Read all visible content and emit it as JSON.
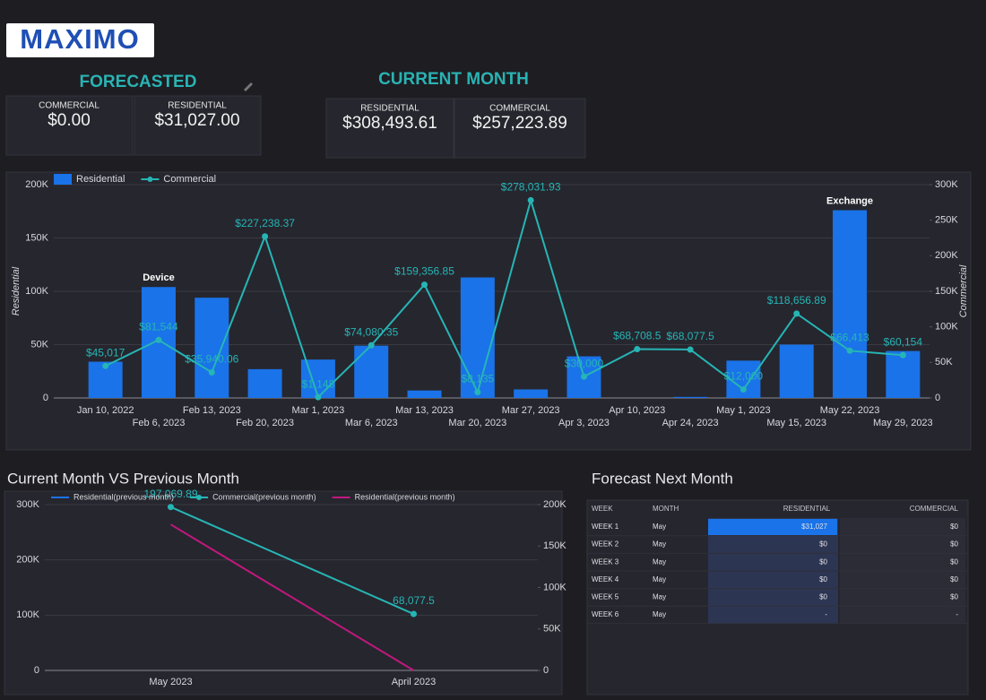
{
  "header": {
    "logo": "MAXIMO"
  },
  "kpis": {
    "forecasted": {
      "title": "FORECASTED",
      "cards": [
        {
          "label": "COMMERCIAL",
          "value": "$0.00"
        },
        {
          "label": "RESIDENTIAL",
          "value": "$31,027.00"
        }
      ]
    },
    "current_month": {
      "title": "CURRENT MONTH",
      "cards": [
        {
          "label": "RESIDENTIAL",
          "value": "$308,493.61"
        },
        {
          "label": "COMMERCIAL",
          "value": "$257,223.89"
        }
      ]
    }
  },
  "chart_data": [
    {
      "type": "combo",
      "categories": [
        "Jan 10, 2022",
        "Feb 6, 2023",
        "Feb 13, 2023",
        "Feb 20, 2023",
        "Mar 1, 2023",
        "Mar 6, 2023",
        "Mar 13, 2023",
        "Mar 20, 2023",
        "Mar 27, 2023",
        "Apr 3, 2023",
        "Apr 10, 2023",
        "Apr 24, 2023",
        "May 1, 2023",
        "May 15, 2023",
        "May 22, 2023",
        "May 29, 2023"
      ],
      "series": [
        {
          "name": "Residential",
          "type": "bar",
          "color": "#1a73e8",
          "values": [
            34000,
            104000,
            94000,
            27000,
            36000,
            49000,
            7000,
            113000,
            8000,
            39000,
            0,
            1000,
            35000,
            50000,
            176000,
            44000
          ]
        },
        {
          "name": "Commercial",
          "type": "line",
          "color": "#26b5b5",
          "axis": "y2",
          "values": [
            45017,
            81544,
            35940.06,
            227238.37,
            1148,
            74080.35,
            159356.85,
            8135,
            278031.93,
            30000,
            68708.5,
            68077.5,
            12000,
            118656.89,
            66413,
            60154
          ],
          "value_labels": [
            "$45,017",
            "$81,544",
            "$35,940.06",
            "$227,238.37",
            "$1,148",
            "$74,080.35",
            "$159,356.85",
            "$8,135",
            "$278,031.93",
            "$30,000",
            "$68,708.5",
            "$68,077.5",
            "$12,000",
            "$118,656.89",
            "$66,413",
            "$60,154"
          ]
        }
      ],
      "ylabel": "Residential",
      "y2label": "Commercial",
      "ylim": [
        0,
        200000
      ],
      "yticks": [
        0,
        {
          "value": 50000,
          "label": "50K"
        },
        {
          "value": 100000,
          "label": "100K"
        },
        {
          "value": 150000,
          "label": "150K"
        },
        {
          "value": 200000,
          "label": "200K"
        }
      ],
      "y2lim": [
        0,
        300000
      ],
      "y2ticks": [
        0,
        {
          "value": 50000,
          "label": "50K"
        },
        {
          "value": 100000,
          "label": "100K"
        },
        {
          "value": 150000,
          "label": "150K"
        },
        {
          "value": 200000,
          "label": "200K"
        },
        {
          "value": 250000,
          "label": "250K"
        },
        {
          "value": 300000,
          "label": "300K"
        }
      ],
      "annotations": [
        {
          "text": "Device",
          "x": "Feb 6, 2023"
        },
        {
          "text": "Exchange",
          "x": "May 22, 2023"
        }
      ],
      "grid": true,
      "legend": "top-left"
    },
    {
      "type": "line",
      "title": "Current Month VS Previous Month",
      "categories": [
        "May 2023",
        "April 2023"
      ],
      "series": [
        {
          "name": "Residential(previous month)",
          "type": "line",
          "color": "#1a73e8",
          "values": [
            null,
            null
          ]
        },
        {
          "name": "Commercial(previous month)",
          "type": "line",
          "color": "#26b5b5",
          "axis": "y2",
          "values": [
            197069.89,
            68077.5
          ],
          "value_labels": [
            "197,069.89",
            "68,077.5"
          ]
        },
        {
          "name": "Residential(previous month)",
          "type": "line",
          "color": "#c2187e",
          "values": [
            264000,
            0
          ],
          "markers": false
        }
      ],
      "ylim": [
        0,
        300000
      ],
      "yticks": [
        0,
        {
          "value": 100000,
          "label": "100K"
        },
        {
          "value": 200000,
          "label": "200K"
        },
        {
          "value": 300000,
          "label": "300K"
        }
      ],
      "y2lim": [
        0,
        200000
      ],
      "y2ticks": [
        0,
        {
          "value": 50000,
          "label": "50K"
        },
        {
          "value": 100000,
          "label": "100K"
        },
        {
          "value": 150000,
          "label": "150K"
        },
        {
          "value": 200000,
          "label": "200K"
        }
      ],
      "grid": true,
      "legend": "top-left"
    }
  ],
  "table": {
    "title": "Forecast Next Month",
    "columns": [
      "WEEK",
      "MONTH",
      "RESIDENTIAL",
      "COMMERCIAL"
    ],
    "rows": [
      [
        "WEEK 1",
        "May",
        "$31,027",
        "$0"
      ],
      [
        "WEEK 2",
        "May",
        "$0",
        "$0"
      ],
      [
        "WEEK 3",
        "May",
        "$0",
        "$0"
      ],
      [
        "WEEK 4",
        "May",
        "$0",
        "$0"
      ],
      [
        "WEEK 5",
        "May",
        "$0",
        "$0"
      ],
      [
        "WEEK 6",
        "May",
        "-",
        "-"
      ]
    ]
  }
}
